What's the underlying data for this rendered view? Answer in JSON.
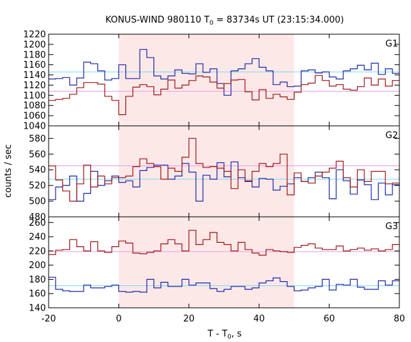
{
  "chart_data": {
    "type": "line",
    "title": "KONUS-WIND 980110 T",
    "title_sub": "0",
    "title_rest": " = 83734s UT (23:15:34.000)",
    "xlabel": "T - T",
    "xlabel_sub": "0",
    "xlabel_rest": ", s",
    "ylabel": "counts / sec",
    "xlim": [
      -20,
      80
    ],
    "x_ticks": [
      -20,
      0,
      20,
      40,
      60,
      80
    ],
    "shaded_interval": [
      0,
      50
    ],
    "colors": {
      "shade": "#fde8e8",
      "series_blue": "#1f2aa8",
      "series_red": "#a01818",
      "bg_blue": "#7fd4f0",
      "bg_red": "#e6a0e6"
    },
    "panels": [
      {
        "label": "G1",
        "ylim": [
          1040,
          1220
        ],
        "y_ticks": [
          1040,
          1060,
          1080,
          1100,
          1120,
          1140,
          1160,
          1180,
          1200,
          1220
        ],
        "background_levels": {
          "blue": 1146,
          "red": 1108
        },
        "series": [
          {
            "color": "blue",
            "x_start": -20,
            "bin": 2,
            "values": [
              1132,
              1133,
              1135,
              1120,
              1134,
              1165,
              1162,
              1148,
              1130,
              1133,
              1160,
              1133,
              1133,
              1190,
              1174,
              1138,
              1132,
              1138,
              1150,
              1143,
              1142,
              1162,
              1145,
              1152,
              1123,
              1100,
              1148,
              1152,
              1162,
              1172,
              1155,
              1148,
              1121,
              1126,
              1117,
              1118,
              1148,
              1150,
              1144,
              1146,
              1136,
              1132,
              1148,
              1152,
              1159,
              1150,
              1163,
              1141,
              1152,
              1143
            ]
          },
          {
            "color": "red",
            "x_start": -20,
            "bin": 2,
            "values": [
              1090,
              1092,
              1094,
              1102,
              1115,
              1125,
              1125,
              1122,
              1098,
              1090,
              1062,
              1098,
              1116,
              1121,
              1117,
              1101,
              1112,
              1130,
              1114,
              1120,
              1129,
              1138,
              1136,
              1126,
              1114,
              1123,
              1130,
              1131,
              1107,
              1091,
              1111,
              1094,
              1102,
              1097,
              1092,
              1106,
              1121,
              1124,
              1139,
              1129,
              1118,
              1121,
              1112,
              1110,
              1117,
              1134,
              1120,
              1132,
              1118,
              1129
            ]
          }
        ]
      },
      {
        "label": "G2",
        "ylim": [
          480,
          596
        ],
        "y_ticks": [
          480,
          500,
          520,
          540,
          560,
          580
        ],
        "background_levels": {
          "blue": 528,
          "red": 545
        },
        "series": [
          {
            "color": "blue",
            "x_start": -20,
            "bin": 2,
            "values": [
              502,
              518,
              520,
              532,
              500,
              510,
              538,
              520,
              526,
              532,
              524,
              526,
              518,
              539,
              543,
              546,
              546,
              528,
              532,
              548,
              537,
              500,
              533,
              528,
              549,
              531,
              550,
              530,
              525,
              518,
              529,
              528,
              514,
              519,
              522,
              530,
              525,
              530,
              537,
              530,
              503,
              540,
              526,
              509,
              527,
              521,
              502,
              523,
              508,
              521
            ]
          },
          {
            "color": "red",
            "x_start": -20,
            "bin": 2,
            "values": [
              545,
              527,
              513,
              500,
              522,
              546,
              518,
              532,
              522,
              530,
              530,
              532,
              544,
              554,
              548,
              544,
              528,
              542,
              538,
              556,
              580,
              548,
              543,
              544,
              542,
              538,
              516,
              540,
              526,
              538,
              548,
              544,
              548,
              560,
              508,
              536,
              525,
              523,
              532,
              537,
              542,
              551,
              530,
              518,
              540,
              525,
              538,
              538,
              522,
              523
            ]
          }
        ]
      },
      {
        "label": "G3",
        "ylim": [
          140,
          268
        ],
        "y_ticks": [
          140,
          160,
          180,
          200,
          220,
          240,
          260
        ],
        "background_levels": {
          "blue": 171,
          "red": 219
        },
        "series": [
          {
            "color": "blue",
            "x_start": -20,
            "bin": 2,
            "values": [
              183,
              166,
              164,
              163,
              163,
              172,
              168,
              168,
              170,
              172,
              163,
              162,
              163,
              162,
              180,
              168,
              176,
              170,
              170,
              180,
              172,
              175,
              175,
              167,
              163,
              166,
              170,
              170,
              166,
              168,
              175,
              178,
              182,
              177,
              170,
              164,
              165,
              168,
              170,
              180,
              165,
              173,
              172,
              180,
              169,
              166,
              166,
              178,
              172,
              178
            ]
          },
          {
            "color": "red",
            "x_start": -20,
            "bin": 2,
            "values": [
              215,
              221,
              222,
              236,
              226,
              220,
              233,
              220,
              218,
              226,
              234,
              231,
              217,
              216,
              218,
              220,
              230,
              236,
              230,
              220,
              249,
              229,
              236,
              246,
              232,
              229,
              220,
              232,
              222,
              217,
              214,
              222,
              220,
              219,
              218,
              225,
              228,
              230,
              224,
              222,
              222,
              227,
              220,
              222,
              224,
              221,
              223,
              220,
              222,
              229
            ]
          }
        ]
      }
    ]
  }
}
